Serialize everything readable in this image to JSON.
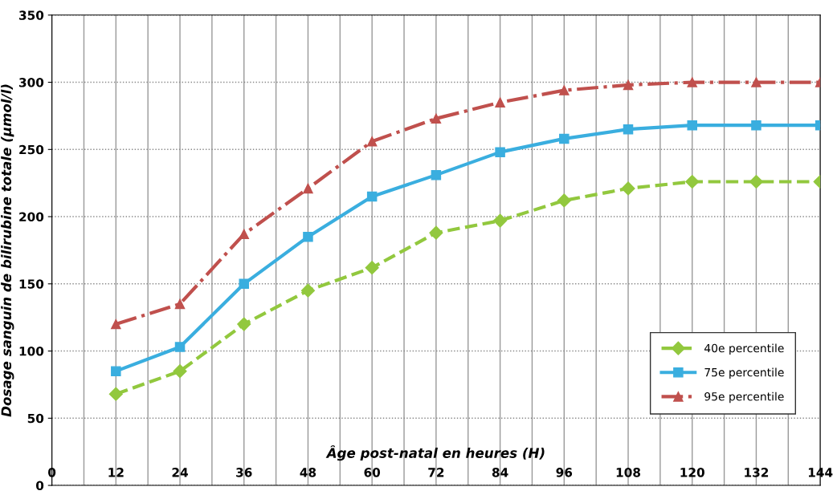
{
  "chart_data": {
    "type": "line",
    "xlabel": "Âge post-natal en heures (H)",
    "ylabel": "Dosage sanguin de bilirubine totale (µmol/l)",
    "x": [
      12,
      24,
      36,
      48,
      60,
      72,
      84,
      96,
      108,
      120,
      132,
      144
    ],
    "series": [
      {
        "name": "40e percentile",
        "color": "#92c83e",
        "marker": "diamond",
        "line_style": "dashed",
        "values": [
          68,
          85,
          120,
          145,
          162,
          188,
          197,
          212,
          221,
          226,
          226,
          226
        ]
      },
      {
        "name": "75e percentile",
        "color": "#3aaedf",
        "marker": "square",
        "line_style": "solid",
        "values": [
          85,
          103,
          150,
          185,
          215,
          231,
          248,
          258,
          265,
          268,
          268,
          268
        ]
      },
      {
        "name": "95e percentile",
        "color": "#c0504d",
        "marker": "triangle",
        "line_style": "dashdot",
        "values": [
          120,
          135,
          187,
          221,
          256,
          273,
          285,
          294,
          298,
          300,
          300,
          300
        ]
      }
    ],
    "xlim": [
      0,
      144
    ],
    "xticks": [
      0,
      {
        "value": 6,
        "label": null
      },
      12,
      {
        "value": 18,
        "label": null
      },
      24,
      {
        "value": 30,
        "label": null
      },
      36,
      {
        "value": 42,
        "label": null
      },
      48,
      {
        "value": 54,
        "label": null
      },
      60,
      {
        "value": 66,
        "label": null
      },
      72,
      {
        "value": 78,
        "label": null
      },
      84,
      {
        "value": 90,
        "label": null
      },
      96,
      {
        "value": 102,
        "label": null
      },
      108,
      {
        "value": 114,
        "label": null
      },
      120,
      {
        "value": 126,
        "label": null
      },
      132,
      {
        "value": 138,
        "label": null
      },
      144
    ],
    "ylim": [
      0,
      350
    ],
    "yticks": [
      0,
      50,
      100,
      150,
      200,
      250,
      300,
      350
    ],
    "grid": true,
    "legend": "bottom right"
  }
}
